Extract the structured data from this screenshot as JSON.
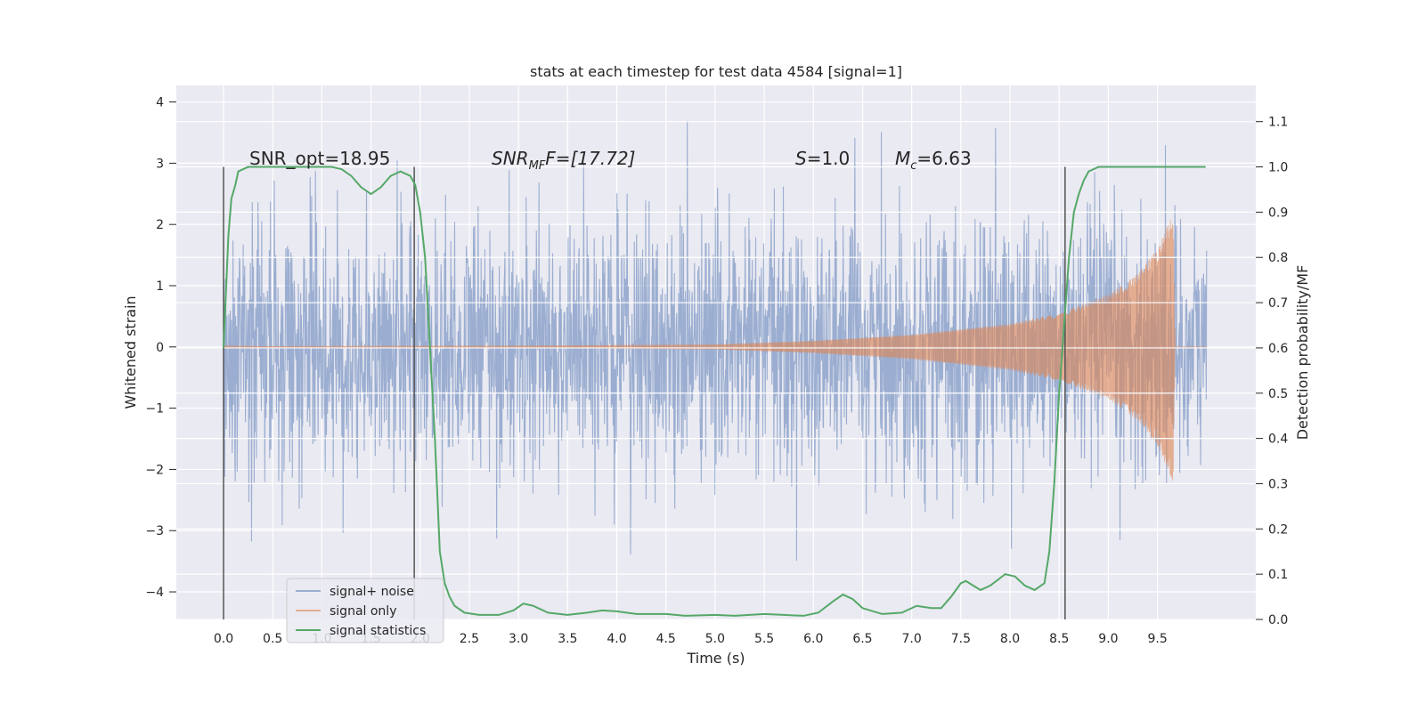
{
  "chart_data": {
    "type": "line",
    "title": "stats at each timestep for test data 4584 [signal=1]",
    "xlabel": "Time (s)",
    "ylabel": "Whitened strain",
    "y2label": "Detection probability/MF",
    "xlim": [
      -0.48,
      10.5
    ],
    "ylim": [
      -4.45,
      4.27
    ],
    "y2lim": [
      -0.0,
      1.18
    ],
    "x_ticks": [
      0.0,
      0.5,
      1.0,
      1.5,
      2.0,
      2.5,
      3.0,
      3.5,
      4.0,
      4.5,
      5.0,
      5.5,
      6.0,
      6.5,
      7.0,
      7.5,
      8.0,
      8.5,
      9.0,
      9.5
    ],
    "y_ticks": [
      -4,
      -3,
      -2,
      -1,
      0,
      1,
      2,
      3,
      4
    ],
    "y2_ticks": [
      0.0,
      0.1,
      0.2,
      0.3,
      0.4,
      0.5,
      0.6,
      0.7,
      0.8,
      0.9,
      1.0,
      1.1
    ],
    "grid": true,
    "legend_placement": "lower-left",
    "colors": {
      "signal_noise": "#4c72b0",
      "signal_only": "#dd8452",
      "statistics": "#55a868",
      "vline": "#555555",
      "plot_bg": "#eaeaf2"
    },
    "annotations": {
      "snr_opt": "SNR_opt=18.95",
      "snr_mf_prefix": "SNR",
      "snr_mf_sub": "MF",
      "snr_mf_rest": "F=[17.72]",
      "s_label": "S",
      "s_value": "=1.0",
      "mc_label": "M",
      "mc_sub": "c",
      "mc_value": "=6.63"
    },
    "vertical_lines_x": [
      0.0,
      1.94,
      8.56
    ],
    "series": [
      {
        "name": "signal+ noise",
        "kind": "noise",
        "x_range": [
          0.0,
          10.0
        ],
        "amplitude_std": 1.0,
        "peak_max": 3.9,
        "peak_min": -4.05
      },
      {
        "name": "signal only",
        "kind": "chirp",
        "x_range": [
          0.0,
          9.68
        ],
        "envelope": [
          [
            0.0,
            0.01
          ],
          [
            3.0,
            0.02
          ],
          [
            5.0,
            0.04
          ],
          [
            6.0,
            0.1
          ],
          [
            7.0,
            0.2
          ],
          [
            8.0,
            0.38
          ],
          [
            8.5,
            0.55
          ],
          [
            9.0,
            0.85
          ],
          [
            9.3,
            1.2
          ],
          [
            9.5,
            1.6
          ],
          [
            9.6,
            2.0
          ],
          [
            9.66,
            2.2
          ],
          [
            9.68,
            0.0
          ]
        ]
      },
      {
        "name": "signal statistics",
        "kind": "probability",
        "points": [
          [
            0.0,
            0.6
          ],
          [
            0.05,
            0.85
          ],
          [
            0.08,
            0.93
          ],
          [
            0.12,
            0.96
          ],
          [
            0.15,
            0.99
          ],
          [
            0.25,
            1.0
          ],
          [
            0.5,
            1.0
          ],
          [
            0.8,
            1.0
          ],
          [
            1.1,
            1.0
          ],
          [
            1.2,
            0.995
          ],
          [
            1.3,
            0.98
          ],
          [
            1.4,
            0.955
          ],
          [
            1.5,
            0.94
          ],
          [
            1.6,
            0.955
          ],
          [
            1.7,
            0.98
          ],
          [
            1.8,
            0.99
          ],
          [
            1.9,
            0.98
          ],
          [
            1.95,
            0.96
          ],
          [
            2.0,
            0.9
          ],
          [
            2.05,
            0.8
          ],
          [
            2.1,
            0.6
          ],
          [
            2.15,
            0.4
          ],
          [
            2.2,
            0.15
          ],
          [
            2.25,
            0.08
          ],
          [
            2.3,
            0.05
          ],
          [
            2.35,
            0.03
          ],
          [
            2.45,
            0.015
          ],
          [
            2.6,
            0.01
          ],
          [
            2.8,
            0.01
          ],
          [
            2.95,
            0.02
          ],
          [
            3.05,
            0.035
          ],
          [
            3.15,
            0.03
          ],
          [
            3.3,
            0.015
          ],
          [
            3.5,
            0.01
          ],
          [
            3.7,
            0.015
          ],
          [
            3.85,
            0.02
          ],
          [
            4.0,
            0.018
          ],
          [
            4.2,
            0.012
          ],
          [
            4.5,
            0.012
          ],
          [
            4.7,
            0.008
          ],
          [
            5.0,
            0.01
          ],
          [
            5.2,
            0.008
          ],
          [
            5.5,
            0.012
          ],
          [
            5.7,
            0.01
          ],
          [
            5.9,
            0.008
          ],
          [
            6.05,
            0.015
          ],
          [
            6.2,
            0.04
          ],
          [
            6.3,
            0.055
          ],
          [
            6.4,
            0.045
          ],
          [
            6.5,
            0.025
          ],
          [
            6.7,
            0.012
          ],
          [
            6.9,
            0.015
          ],
          [
            7.05,
            0.03
          ],
          [
            7.2,
            0.025
          ],
          [
            7.3,
            0.025
          ],
          [
            7.4,
            0.05
          ],
          [
            7.5,
            0.08
          ],
          [
            7.55,
            0.085
          ],
          [
            7.7,
            0.065
          ],
          [
            7.8,
            0.075
          ],
          [
            7.95,
            0.1
          ],
          [
            8.05,
            0.095
          ],
          [
            8.15,
            0.075
          ],
          [
            8.25,
            0.065
          ],
          [
            8.35,
            0.08
          ],
          [
            8.4,
            0.15
          ],
          [
            8.45,
            0.3
          ],
          [
            8.5,
            0.5
          ],
          [
            8.55,
            0.65
          ],
          [
            8.6,
            0.8
          ],
          [
            8.65,
            0.9
          ],
          [
            8.7,
            0.94
          ],
          [
            8.75,
            0.97
          ],
          [
            8.8,
            0.99
          ],
          [
            8.9,
            1.0
          ],
          [
            9.2,
            1.0
          ],
          [
            9.6,
            1.0
          ],
          [
            9.99,
            1.0
          ]
        ]
      }
    ]
  }
}
